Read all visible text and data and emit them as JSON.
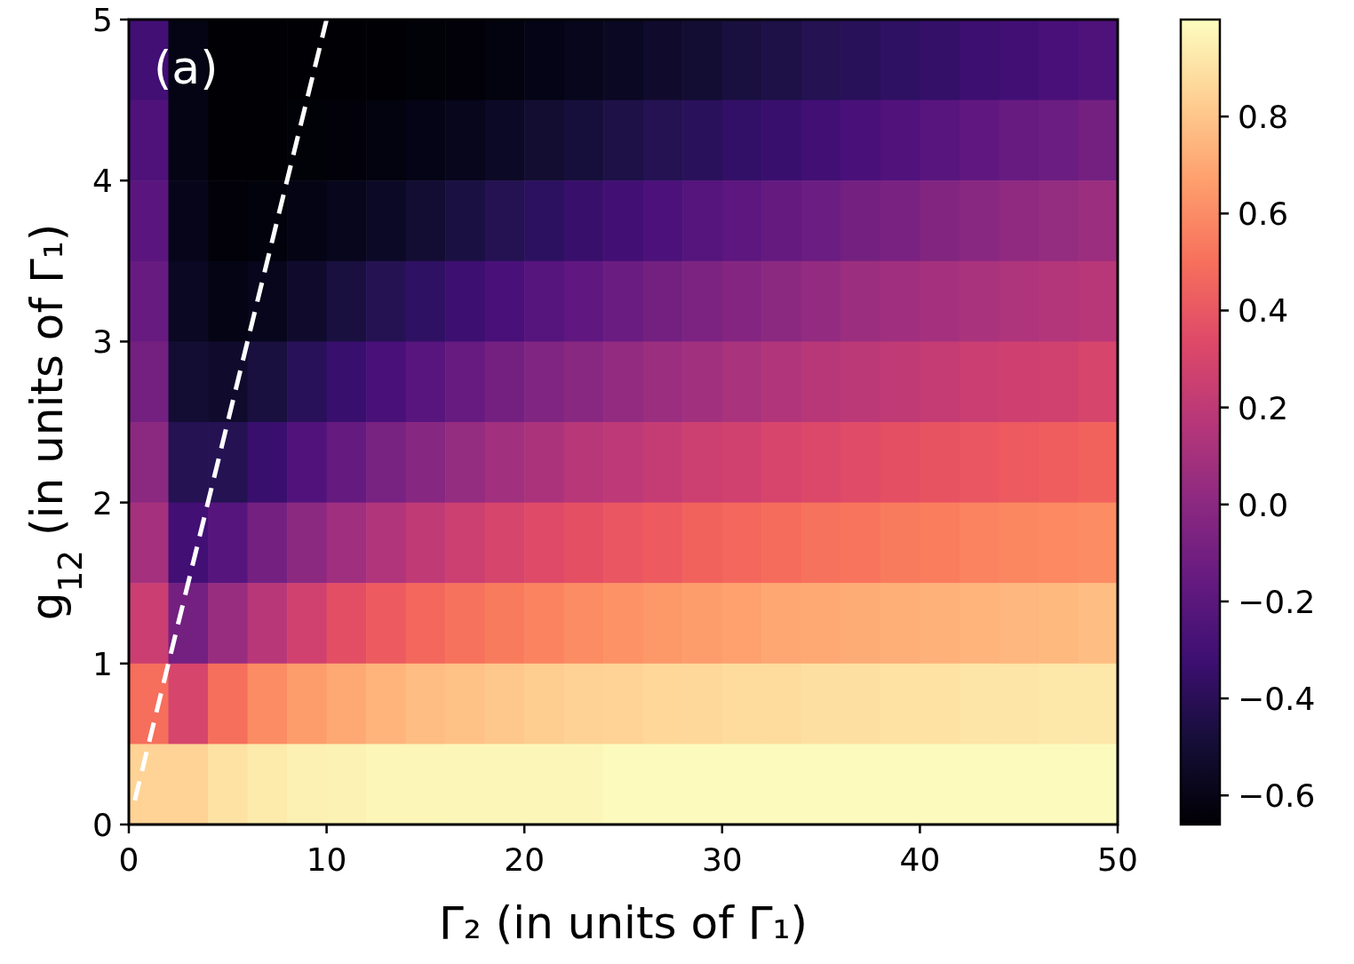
{
  "chart_data": {
    "type": "heatmap",
    "xlabel": "Γ₂ (in units of Γ₁)",
    "ylabel": "g$_{12}$ (in units of Γ₁)",
    "annotations": [
      "(a)"
    ],
    "xlim": [
      0,
      50
    ],
    "xticks": [
      0,
      10,
      20,
      30,
      40,
      50
    ],
    "ylim": [
      0,
      5
    ],
    "yticks": [
      0,
      1,
      2,
      3,
      4,
      5
    ],
    "clim": [
      -0.66,
      1.0
    ],
    "cticks": [
      {
        "value": -0.6,
        "label": "−0.6"
      },
      {
        "value": -0.4,
        "label": "−0.4"
      },
      {
        "value": -0.2,
        "label": "−0.2"
      },
      {
        "value": 0,
        "label": "0.0"
      },
      0.2,
      0.4,
      0.6,
      0.8
    ],
    "cells": [
      [
        -0.3,
        -0.6,
        -0.65,
        -0.65,
        -0.65,
        -0.65,
        -0.65,
        -0.64,
        -0.63,
        -0.61,
        -0.59,
        -0.57,
        -0.55,
        -0.52,
        -0.5,
        -0.47,
        -0.45,
        -0.42,
        -0.4,
        -0.37,
        -0.35,
        -0.32,
        -0.3,
        -0.27,
        -0.25
      ],
      [
        -0.25,
        -0.6,
        -0.65,
        -0.65,
        -0.64,
        -0.63,
        -0.61,
        -0.59,
        -0.57,
        -0.54,
        -0.51,
        -0.48,
        -0.45,
        -0.42,
        -0.39,
        -0.36,
        -0.33,
        -0.3,
        -0.27,
        -0.24,
        -0.21,
        -0.18,
        -0.15,
        -0.13,
        -0.1
      ],
      [
        -0.2,
        -0.58,
        -0.63,
        -0.62,
        -0.6,
        -0.57,
        -0.54,
        -0.5,
        -0.46,
        -0.42,
        -0.38,
        -0.34,
        -0.3,
        -0.26,
        -0.22,
        -0.19,
        -0.16,
        -0.13,
        -0.1,
        -0.07,
        -0.04,
        -0.01,
        0.02,
        0.04,
        0.06
      ],
      [
        -0.15,
        -0.55,
        -0.6,
        -0.57,
        -0.52,
        -0.47,
        -0.42,
        -0.37,
        -0.32,
        -0.27,
        -0.22,
        -0.18,
        -0.14,
        -0.1,
        -0.06,
        -0.03,
        0,
        0.03,
        0.06,
        0.08,
        0.1,
        0.12,
        0.14,
        0.16,
        0.18
      ],
      [
        -0.1,
        -0.5,
        -0.52,
        -0.47,
        -0.4,
        -0.33,
        -0.27,
        -0.21,
        -0.15,
        -0.1,
        -0.05,
        -0.01,
        0.03,
        0.06,
        0.09,
        0.12,
        0.15,
        0.17,
        0.19,
        0.21,
        0.23,
        0.25,
        0.27,
        0.28,
        0.3
      ],
      [
        0,
        -0.42,
        -0.42,
        -0.33,
        -0.24,
        -0.16,
        -0.08,
        -0.02,
        0.04,
        0.09,
        0.13,
        0.17,
        0.2,
        0.23,
        0.26,
        0.28,
        0.31,
        0.33,
        0.35,
        0.37,
        0.39,
        0.4,
        0.42,
        0.43,
        0.45
      ],
      [
        0.1,
        -0.3,
        -0.22,
        -0.1,
        0,
        0.08,
        0.15,
        0.21,
        0.26,
        0.3,
        0.34,
        0.37,
        0.4,
        0.42,
        0.45,
        0.47,
        0.49,
        0.51,
        0.52,
        0.54,
        0.55,
        0.57,
        0.58,
        0.59,
        0.6
      ],
      [
        0.25,
        -0.1,
        0.05,
        0.18,
        0.28,
        0.36,
        0.42,
        0.47,
        0.51,
        0.54,
        0.57,
        0.6,
        0.62,
        0.64,
        0.66,
        0.67,
        0.69,
        0.7,
        0.71,
        0.72,
        0.73,
        0.74,
        0.75,
        0.76,
        0.77
      ],
      [
        0.5,
        0.3,
        0.5,
        0.6,
        0.66,
        0.7,
        0.74,
        0.77,
        0.79,
        0.81,
        0.83,
        0.84,
        0.85,
        0.86,
        0.87,
        0.88,
        0.88,
        0.89,
        0.89,
        0.9,
        0.9,
        0.91,
        0.91,
        0.92,
        0.92
      ],
      [
        0.85,
        0.85,
        0.9,
        0.93,
        0.95,
        0.96,
        0.97,
        0.97,
        0.98,
        0.98,
        0.98,
        0.98,
        0.99,
        0.99,
        0.99,
        0.99,
        0.99,
        0.99,
        0.99,
        0.99,
        0.99,
        0.99,
        0.99,
        0.99,
        0.99
      ]
    ],
    "series": [
      {
        "type": "line",
        "x": [
          0.3,
          10
        ],
        "values": [
          0.15,
          5
        ],
        "color": "#ffffff",
        "line_style": "dashed"
      }
    ]
  }
}
